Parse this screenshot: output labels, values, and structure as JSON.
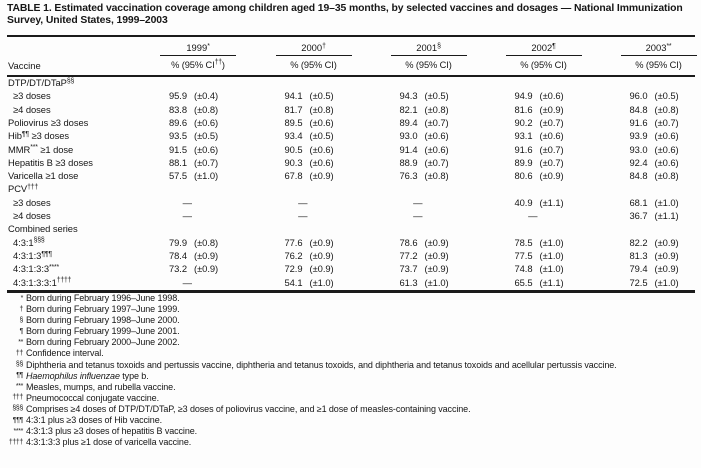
{
  "title": "TABLE 1. Estimated vaccination coverage among children aged 19–35 months, by selected vaccines and dosages — National Immunization Survey, United States, 1999–2003",
  "columns": {
    "vaccine_header": "Vaccine",
    "years": [
      {
        "year": "1999",
        "mark": "*",
        "ci_pre": "% (95% CI",
        "ci_sup": "††",
        "ci_post": ")"
      },
      {
        "year": "2000",
        "mark": "†",
        "ci_pre": "% (95% CI)",
        "ci_sup": "",
        "ci_post": ""
      },
      {
        "year": "2001",
        "mark": "§",
        "ci_pre": "% (95% CI)",
        "ci_sup": "",
        "ci_post": ""
      },
      {
        "year": "2002",
        "mark": "¶",
        "ci_pre": "% (95% CI)",
        "ci_sup": "",
        "ci_post": ""
      },
      {
        "year": "2003",
        "mark": "**",
        "ci_pre": "% (95% CI)",
        "ci_sup": "",
        "ci_post": ""
      }
    ]
  },
  "rows": [
    {
      "section": true,
      "indent": false,
      "pre": "DTP/DT/DTaP",
      "sup": "§§",
      "post": "",
      "values": null
    },
    {
      "section": false,
      "indent": true,
      "pre": "≥3 doses",
      "sup": "",
      "post": "",
      "values": [
        {
          "v": "95.9",
          "ci": "(±0.4)"
        },
        {
          "v": "94.1",
          "ci": "(±0.5)"
        },
        {
          "v": "94.3",
          "ci": "(±0.5)"
        },
        {
          "v": "94.9",
          "ci": "(±0.6)"
        },
        {
          "v": "96.0",
          "ci": "(±0.5)"
        }
      ]
    },
    {
      "section": false,
      "indent": true,
      "pre": "≥4 doses",
      "sup": "",
      "post": "",
      "values": [
        {
          "v": "83.8",
          "ci": "(±0.8)"
        },
        {
          "v": "81.7",
          "ci": "(±0.8)"
        },
        {
          "v": "82.1",
          "ci": "(±0.8)"
        },
        {
          "v": "81.6",
          "ci": "(±0.9)"
        },
        {
          "v": "84.8",
          "ci": "(±0.8)"
        }
      ]
    },
    {
      "section": false,
      "indent": false,
      "pre": "Poliovirus ≥3 doses",
      "sup": "",
      "post": "",
      "values": [
        {
          "v": "89.6",
          "ci": "(±0.6)"
        },
        {
          "v": "89.5",
          "ci": "(±0.6)"
        },
        {
          "v": "89.4",
          "ci": "(±0.7)"
        },
        {
          "v": "90.2",
          "ci": "(±0.7)"
        },
        {
          "v": "91.6",
          "ci": "(±0.7)"
        }
      ]
    },
    {
      "section": false,
      "indent": false,
      "pre": "Hib",
      "sup": "¶¶",
      "post": " ≥3 doses",
      "values": [
        {
          "v": "93.5",
          "ci": "(±0.5)"
        },
        {
          "v": "93.4",
          "ci": "(±0.5)"
        },
        {
          "v": "93.0",
          "ci": "(±0.6)"
        },
        {
          "v": "93.1",
          "ci": "(±0.6)"
        },
        {
          "v": "93.9",
          "ci": "(±0.6)"
        }
      ]
    },
    {
      "section": false,
      "indent": false,
      "pre": "MMR",
      "sup": "***",
      "post": " ≥1 dose",
      "values": [
        {
          "v": "91.5",
          "ci": "(±0.6)"
        },
        {
          "v": "90.5",
          "ci": "(±0.6)"
        },
        {
          "v": "91.4",
          "ci": "(±0.6)"
        },
        {
          "v": "91.6",
          "ci": "(±0.7)"
        },
        {
          "v": "93.0",
          "ci": "(±0.6)"
        }
      ]
    },
    {
      "section": false,
      "indent": false,
      "pre": "Hepatitis B ≥3 doses",
      "sup": "",
      "post": "",
      "values": [
        {
          "v": "88.1",
          "ci": "(±0.7)"
        },
        {
          "v": "90.3",
          "ci": "(±0.6)"
        },
        {
          "v": "88.9",
          "ci": "(±0.7)"
        },
        {
          "v": "89.9",
          "ci": "(±0.7)"
        },
        {
          "v": "92.4",
          "ci": "(±0.6)"
        }
      ]
    },
    {
      "section": false,
      "indent": false,
      "pre": "Varicella ≥1 dose",
      "sup": "",
      "post": "",
      "values": [
        {
          "v": "57.5",
          "ci": "(±1.0)"
        },
        {
          "v": "67.8",
          "ci": "(±0.9)"
        },
        {
          "v": "76.3",
          "ci": "(±0.8)"
        },
        {
          "v": "80.6",
          "ci": "(±0.9)"
        },
        {
          "v": "84.8",
          "ci": "(±0.8)"
        }
      ]
    },
    {
      "section": true,
      "indent": false,
      "pre": "PCV",
      "sup": "†††",
      "post": "",
      "values": null
    },
    {
      "section": false,
      "indent": true,
      "pre": "≥3 doses",
      "sup": "",
      "post": "",
      "values": [
        {
          "v": "—",
          "ci": ""
        },
        {
          "v": "—",
          "ci": ""
        },
        {
          "v": "—",
          "ci": ""
        },
        {
          "v": "40.9",
          "ci": "(±1.1)"
        },
        {
          "v": "68.1",
          "ci": "(±1.0)"
        }
      ]
    },
    {
      "section": false,
      "indent": true,
      "pre": "≥4 doses",
      "sup": "",
      "post": "",
      "values": [
        {
          "v": "—",
          "ci": ""
        },
        {
          "v": "—",
          "ci": ""
        },
        {
          "v": "—",
          "ci": ""
        },
        {
          "v": "—",
          "ci": ""
        },
        {
          "v": "36.7",
          "ci": "(±1.1)"
        }
      ]
    },
    {
      "section": true,
      "indent": false,
      "pre": "Combined series",
      "sup": "",
      "post": "",
      "values": null
    },
    {
      "section": false,
      "indent": true,
      "pre": "4:3:1",
      "sup": "§§§",
      "post": "",
      "values": [
        {
          "v": "79.9",
          "ci": "(±0.8)"
        },
        {
          "v": "77.6",
          "ci": "(±0.9)"
        },
        {
          "v": "78.6",
          "ci": "(±0.9)"
        },
        {
          "v": "78.5",
          "ci": "(±1.0)"
        },
        {
          "v": "82.2",
          "ci": "(±0.9)"
        }
      ]
    },
    {
      "section": false,
      "indent": true,
      "pre": "4:3:1:3",
      "sup": "¶¶¶",
      "post": "",
      "values": [
        {
          "v": "78.4",
          "ci": "(±0.9)"
        },
        {
          "v": "76.2",
          "ci": "(±0.9)"
        },
        {
          "v": "77.2",
          "ci": "(±0.9)"
        },
        {
          "v": "77.5",
          "ci": "(±1.0)"
        },
        {
          "v": "81.3",
          "ci": "(±0.9)"
        }
      ]
    },
    {
      "section": false,
      "indent": true,
      "pre": "4:3:1:3:3",
      "sup": "****",
      "post": "",
      "values": [
        {
          "v": "73.2",
          "ci": "(±0.9)"
        },
        {
          "v": "72.9",
          "ci": "(±0.9)"
        },
        {
          "v": "73.7",
          "ci": "(±0.9)"
        },
        {
          "v": "74.8",
          "ci": "(±1.0)"
        },
        {
          "v": "79.4",
          "ci": "(±0.9)"
        }
      ]
    },
    {
      "section": false,
      "indent": true,
      "pre": "4:3:1:3:3:1",
      "sup": "††††",
      "post": "",
      "values": [
        {
          "v": "—",
          "ci": ""
        },
        {
          "v": "54.1",
          "ci": "(±1.0)"
        },
        {
          "v": "61.3",
          "ci": "(±1.0)"
        },
        {
          "v": "65.5",
          "ci": "(±1.1)"
        },
        {
          "v": "72.5",
          "ci": "(±1.0)"
        }
      ]
    }
  ],
  "footnotes": [
    {
      "mark": "*",
      "parts": [
        {
          "t": "Born during February 1996–June 1998."
        }
      ]
    },
    {
      "mark": "†",
      "parts": [
        {
          "t": "Born during February 1997–June 1999."
        }
      ]
    },
    {
      "mark": "§",
      "parts": [
        {
          "t": "Born during February 1998–June 2000."
        }
      ]
    },
    {
      "mark": "¶",
      "parts": [
        {
          "t": "Born during February 1999–June 2001."
        }
      ]
    },
    {
      "mark": "**",
      "parts": [
        {
          "t": "Born during February 2000–June 2002."
        }
      ]
    },
    {
      "mark": "††",
      "parts": [
        {
          "t": "Confidence interval."
        }
      ]
    },
    {
      "mark": "§§",
      "parts": [
        {
          "t": "Diphtheria and tetanus toxoids and pertussis vaccine, diphtheria and tetanus toxoids, and diphtheria and tetanus toxoids and acellular pertussis vaccine."
        }
      ]
    },
    {
      "mark": "¶¶",
      "parts": [
        {
          "t": "Haemophilus influenzae",
          "i": true
        },
        {
          "t": " type b."
        }
      ]
    },
    {
      "mark": "***",
      "parts": [
        {
          "t": "Measles, mumps, and rubella vaccine."
        }
      ]
    },
    {
      "mark": "†††",
      "parts": [
        {
          "t": "Pneumococcal conjugate vaccine."
        }
      ]
    },
    {
      "mark": "§§§",
      "parts": [
        {
          "t": "Comprises ≥4 doses of DTP/DT/DTaP, ≥3 doses of poliovirus vaccine, and ≥1 dose of measles-containing vaccine."
        }
      ]
    },
    {
      "mark": "¶¶¶",
      "parts": [
        {
          "t": "4:3:1 plus ≥3 doses of Hib vaccine."
        }
      ]
    },
    {
      "mark": "****",
      "parts": [
        {
          "t": "4:3:1:3 plus ≥3 doses of hepatitis B vaccine."
        }
      ]
    },
    {
      "mark": "††††",
      "parts": [
        {
          "t": "4:3:1:3:3 plus ≥1 dose of varicella vaccine."
        }
      ]
    }
  ]
}
